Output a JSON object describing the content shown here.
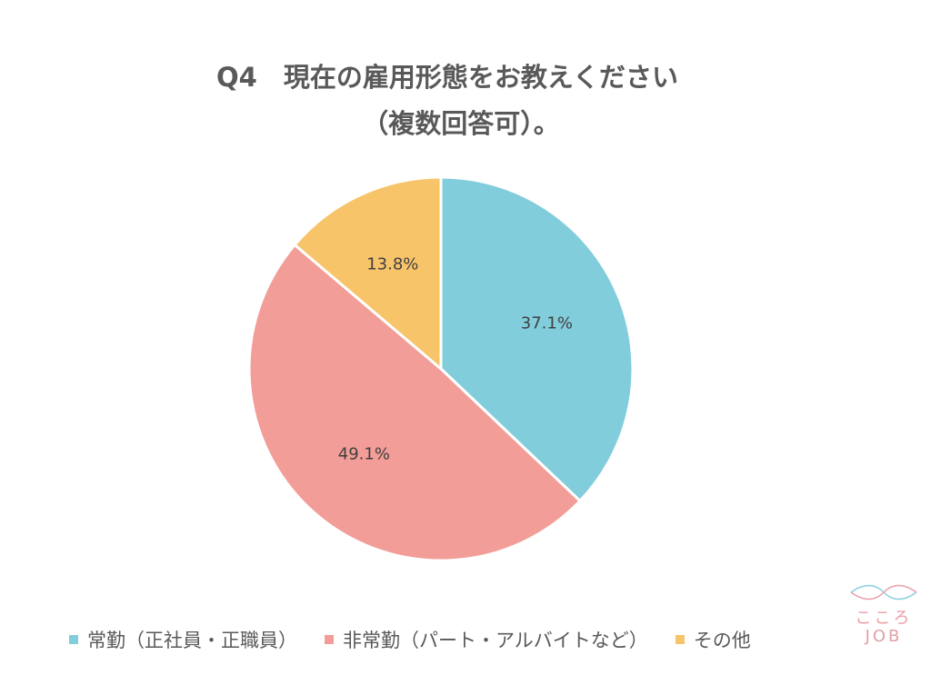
{
  "chart_data": {
    "type": "pie",
    "title_lines": [
      "Q4　現在の雇用形態をお教えください",
      "（複数回答可）。"
    ],
    "slices": [
      {
        "name": "常勤（正社員・正職員）",
        "value": 37.1,
        "label": "37.1%",
        "color": "#82cddb"
      },
      {
        "name": "非常勤（パート・アルバイトなど）",
        "value": 49.1,
        "label": "49.1%",
        "color": "#f29d97"
      },
      {
        "name": "その他",
        "value": 13.8,
        "label": "13.8%",
        "color": "#f8c46a"
      }
    ],
    "start": "12 o'clock",
    "direction": "clockwise",
    "legend_position": "bottom"
  },
  "logo": {
    "line1": "こころ",
    "line2": "JOB",
    "wave_colors": [
      "#86cfdc",
      "#ec9da6"
    ]
  }
}
